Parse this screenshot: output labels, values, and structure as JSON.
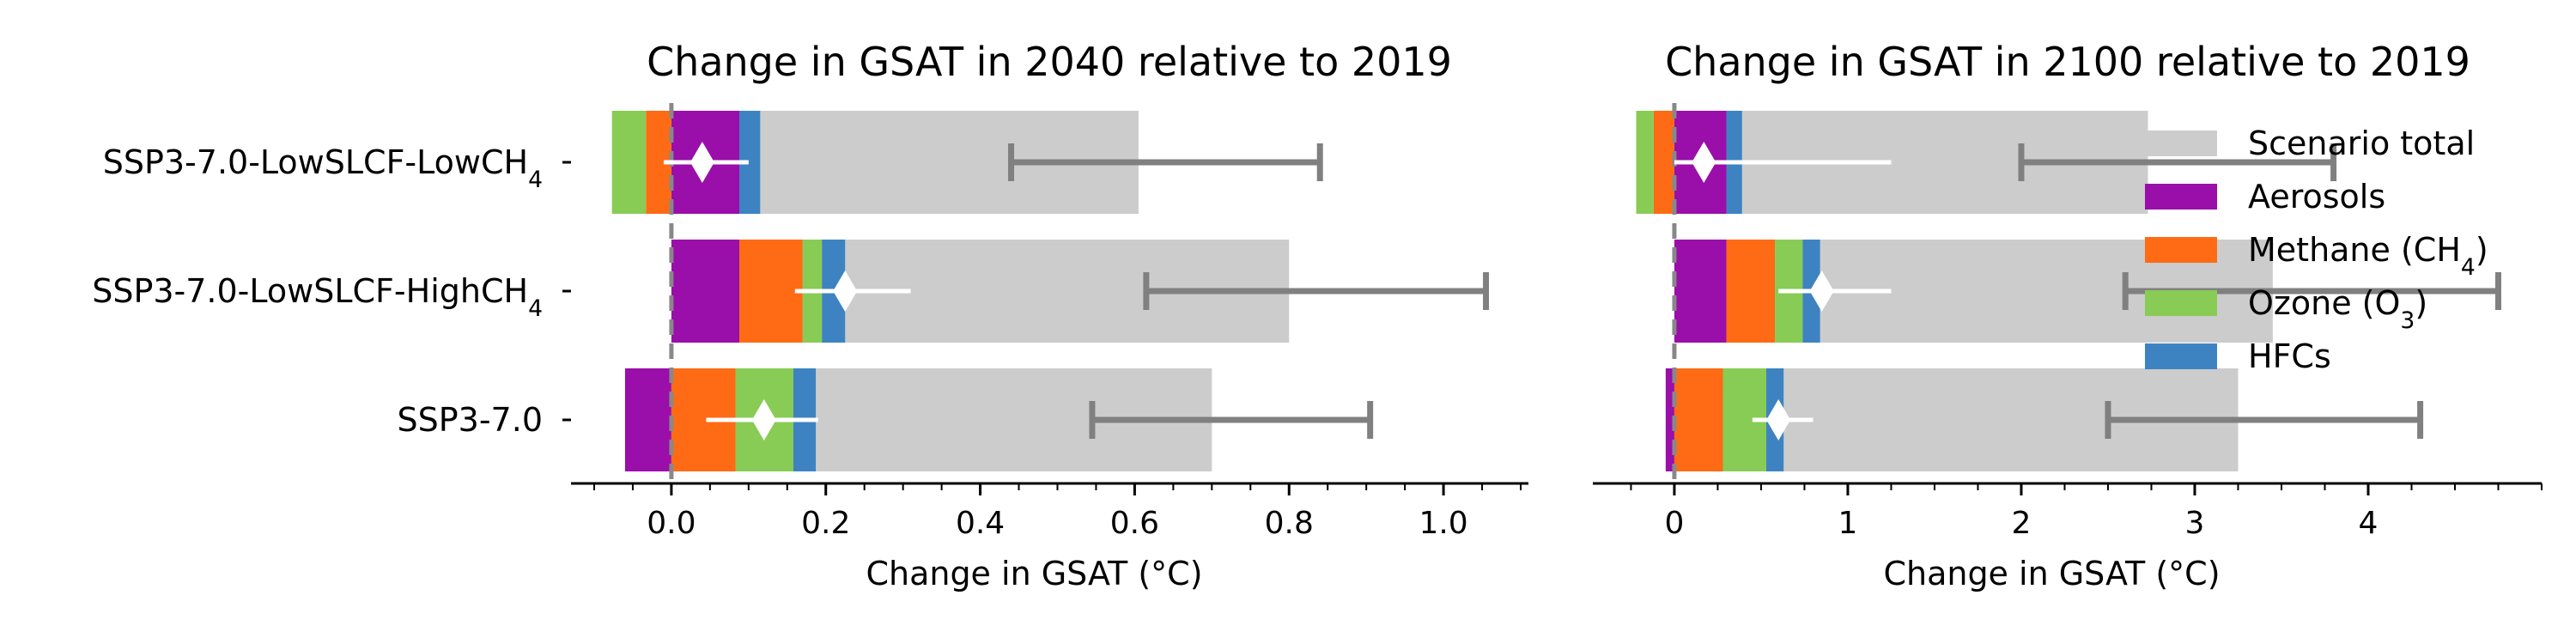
{
  "chart_data": [
    {
      "type": "bar",
      "orientation": "horizontal",
      "stacked": true,
      "title": "Change in GSAT in 2040 relative to 2019",
      "xlabel": "Change in GSAT (°C)",
      "xlim": [
        -0.13,
        1.11
      ],
      "x_ticks": [
        "0.0",
        "0.2",
        "0.4",
        "0.6",
        "0.8",
        "1.0"
      ],
      "x_tick_values": [
        0,
        0.2,
        0.4,
        0.6,
        0.8,
        1.0
      ],
      "categories": [
        {
          "base": "SSP3-7.0-LowSLCF-LowCH",
          "sub": "4"
        },
        {
          "base": "SSP3-7.0-LowSLCF-HighCH",
          "sub": "4"
        },
        {
          "base": "SSP3-7.0",
          "sub": ""
        }
      ],
      "scenario_total": [
        0.605,
        0.8,
        0.7
      ],
      "scenario_total_range": [
        [
          0.44,
          0.84
        ],
        [
          0.615,
          1.055
        ],
        [
          0.545,
          0.905
        ]
      ],
      "series": [
        {
          "name": "Aerosols",
          "values": [
            0.088,
            0.088,
            -0.06
          ]
        },
        {
          "name": "Methane (CH4)",
          "values": [
            -0.033,
            0.082,
            0.083
          ]
        },
        {
          "name": "Ozone (O3)",
          "values": [
            -0.044,
            0.025,
            0.075
          ]
        },
        {
          "name": "HFCs",
          "values": [
            0.027,
            0.03,
            0.029
          ]
        }
      ],
      "component_total": [
        0.04,
        0.225,
        0.12
      ],
      "component_total_range": [
        [
          -0.01,
          0.1
        ],
        [
          0.16,
          0.31
        ],
        [
          0.045,
          0.19
        ]
      ]
    },
    {
      "type": "bar",
      "orientation": "horizontal",
      "stacked": true,
      "title": "Change in GSAT in 2100 relative to 2019",
      "xlabel": "Change in GSAT (°C)",
      "xlim": [
        -0.47,
        5.0
      ],
      "x_ticks": [
        "0",
        "1",
        "2",
        "3",
        "4"
      ],
      "x_tick_values": [
        0,
        1,
        2,
        3,
        4
      ],
      "scenario_total": [
        2.73,
        3.45,
        3.25
      ],
      "scenario_total_range": [
        [
          2.0,
          3.8
        ],
        [
          2.6,
          4.75
        ],
        [
          2.5,
          4.3
        ]
      ],
      "series": [
        {
          "name": "Aerosols",
          "values": [
            0.3,
            0.3,
            -0.05
          ]
        },
        {
          "name": "Methane (CH4)",
          "values": [
            -0.12,
            0.28,
            0.28
          ]
        },
        {
          "name": "Ozone (O3)",
          "values": [
            -0.1,
            0.16,
            0.25
          ]
        },
        {
          "name": "HFCs",
          "values": [
            0.09,
            0.1,
            0.1
          ]
        }
      ],
      "component_total": [
        0.17,
        0.85,
        0.6
      ],
      "component_total_range": [
        [
          0.0,
          1.25
        ],
        [
          0.6,
          1.25
        ],
        [
          0.45,
          0.8
        ]
      ]
    }
  ],
  "legend": {
    "placement": "top-right",
    "items": [
      {
        "label": "Scenario total",
        "sub": "",
        "suffix": ""
      },
      {
        "label": "Aerosols",
        "sub": "",
        "suffix": ""
      },
      {
        "label": "Methane (CH",
        "sub": "4",
        "suffix": ")"
      },
      {
        "label": "Ozone (O",
        "sub": "3",
        "suffix": ")"
      },
      {
        "label": "HFCs",
        "sub": "",
        "suffix": ""
      }
    ]
  },
  "colors": {
    "scenario_total": "#cccccc",
    "Aerosols": "#9a0ea9",
    "Methane (CH4)": "#ff6a14",
    "Ozone (O3)": "#88cc55",
    "HFCs": "#3d83c2",
    "range_bar": "#808080",
    "zero_line": "#888888"
  }
}
